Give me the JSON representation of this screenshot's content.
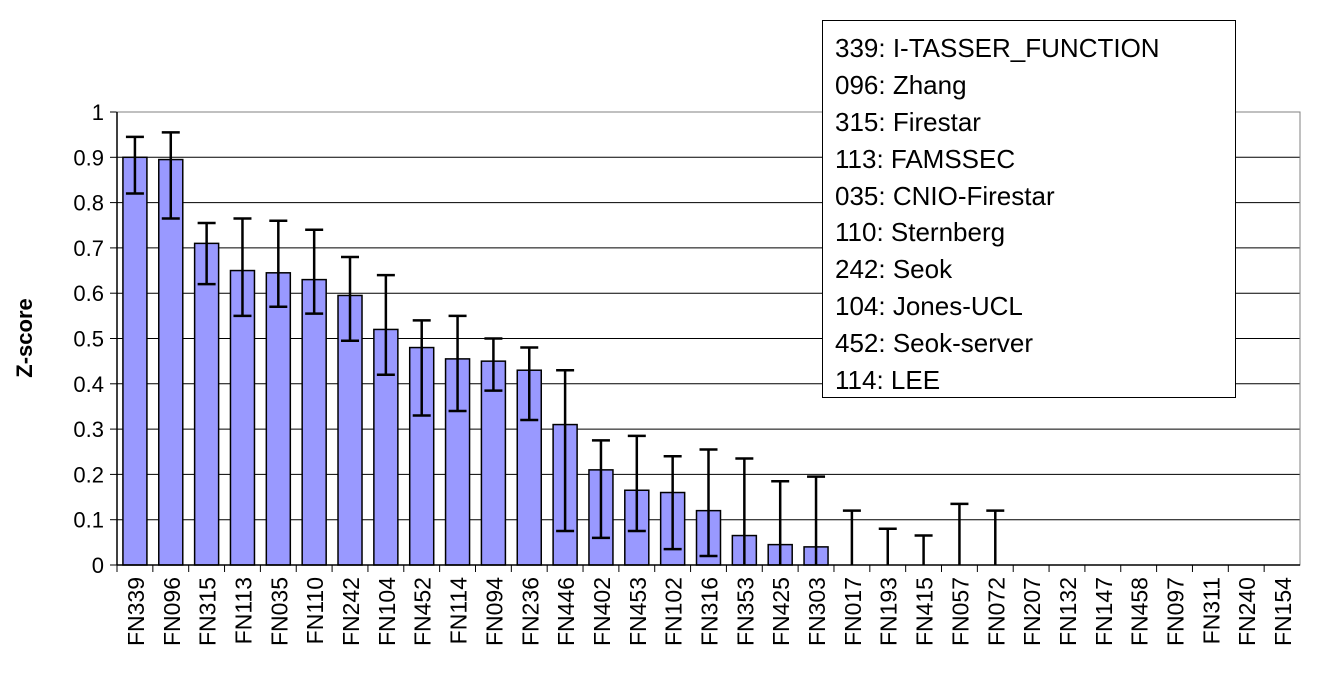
{
  "chart_data": {
    "type": "bar",
    "ylabel": "Z-score",
    "xlabel": "",
    "ylim": [
      0,
      1
    ],
    "yticks": [
      "0",
      "0.1",
      "0.2",
      "0.3",
      "0.4",
      "0.5",
      "0.6",
      "0.7",
      "0.8",
      "0.9",
      "1"
    ],
    "categories": [
      "FN339",
      "FN096",
      "FN315",
      "FN113",
      "FN035",
      "FN110",
      "FN242",
      "FN104",
      "FN452",
      "FN114",
      "FN094",
      "FN236",
      "FN446",
      "FN402",
      "FN453",
      "FN102",
      "FN316",
      "FN353",
      "FN425",
      "FN303",
      "FN017",
      "FN193",
      "FN415",
      "FN057",
      "FN072",
      "FN207",
      "FN132",
      "FN147",
      "FN458",
      "FN097",
      "FN311",
      "FN240",
      "FN154"
    ],
    "values": [
      0.9,
      0.895,
      0.71,
      0.65,
      0.645,
      0.63,
      0.595,
      0.52,
      0.48,
      0.455,
      0.45,
      0.43,
      0.31,
      0.21,
      0.165,
      0.16,
      0.12,
      0.065,
      0.045,
      0.04,
      0,
      0,
      0,
      0,
      0,
      0,
      0,
      0,
      0,
      0,
      0,
      0,
      0
    ],
    "error_upper": [
      0.945,
      0.955,
      0.755,
      0.765,
      0.76,
      0.74,
      0.68,
      0.64,
      0.54,
      0.55,
      0.5,
      0.48,
      0.43,
      0.275,
      0.285,
      0.24,
      0.255,
      0.235,
      0.185,
      0.195,
      0.12,
      0.08,
      0.065,
      0.135,
      0.12,
      0,
      0,
      0,
      0,
      0,
      0,
      0,
      0
    ],
    "error_lower": [
      0.82,
      0.765,
      0.62,
      0.55,
      0.57,
      0.555,
      0.495,
      0.42,
      0.33,
      0.34,
      0.385,
      0.32,
      0.075,
      0.06,
      0.075,
      0.035,
      0.02,
      0,
      0,
      0,
      0,
      0,
      0,
      0,
      0,
      0,
      0,
      0,
      0,
      0,
      0,
      0,
      0
    ],
    "bar_color": "#9999ff",
    "legend": [
      "339: I-TASSER_FUNCTION",
      "096: Zhang",
      "315: Firestar",
      "113: FAMSSEC",
      "035: CNIO-Firestar",
      "110: Sternberg",
      "242: Seok",
      "104: Jones-UCL",
      "452: Seok-server",
      "114: LEE"
    ],
    "legend_position": "top-right"
  }
}
